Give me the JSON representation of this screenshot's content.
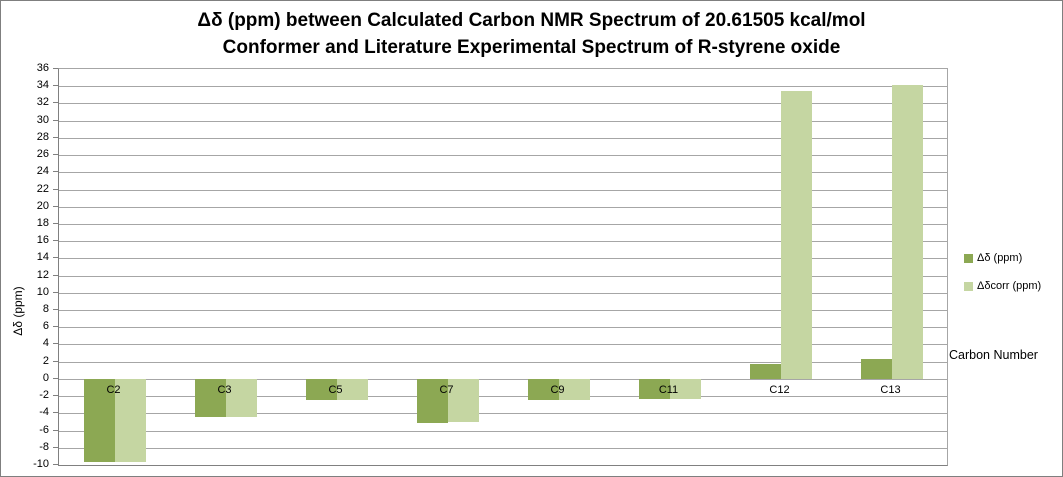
{
  "chart_data": {
    "type": "bar",
    "title_line1": "Δδ (ppm) between Calculated Carbon NMR Spectrum of 20.61505 kcal/mol",
    "title_line2": "Conformer and Literature Experimental Spectrum of R-styrene oxide",
    "categories": [
      "C2",
      "C3",
      "C5",
      "C7",
      "C9",
      "C11",
      "C12",
      "C13"
    ],
    "series": [
      {
        "name": "Δδ (ppm)",
        "color": "#8ca853",
        "values": [
          -9.7,
          -4.4,
          -2.4,
          -5.1,
          -2.4,
          -2.3,
          1.7,
          2.3
        ]
      },
      {
        "name": "Δδcorr (ppm)",
        "color": "#c5d6a2",
        "values": [
          -9.7,
          -4.4,
          -2.4,
          -5.0,
          -2.4,
          -2.3,
          33.4,
          34.1
        ]
      }
    ],
    "ylabel": "Δδ (ppm)",
    "xlabel": "Carbon Number",
    "ylim": [
      -10,
      36
    ],
    "ytick_step": 2,
    "grid": true,
    "legend_position": "right",
    "gridline_color": "#a6a6a6",
    "axis_line_color": "#808080"
  }
}
